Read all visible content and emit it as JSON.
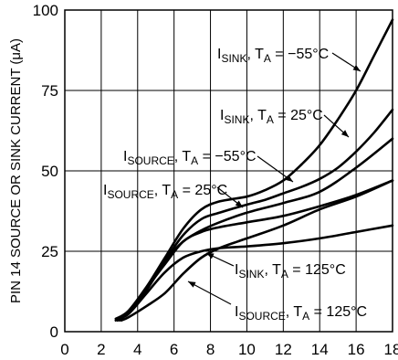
{
  "chart_data": {
    "type": "line",
    "title": "",
    "xlabel": "",
    "ylabel": "PIN 14 SOURCE OR SINK CURRENT (μA)",
    "xlim": [
      0,
      18
    ],
    "ylim": [
      0,
      100
    ],
    "x_ticks": [
      0,
      2,
      4,
      6,
      8,
      10,
      12,
      14,
      16,
      18
    ],
    "y_ticks": [
      0,
      25,
      50,
      75,
      100
    ],
    "grid": true,
    "series": [
      {
        "name": "ISINK, TA = −55°C",
        "x": [
          2.8,
          3.5,
          4.5,
          5.5,
          6.5,
          7.5,
          8.5,
          10,
          11,
          12,
          13,
          14,
          15,
          16,
          17,
          18
        ],
        "y": [
          3.5,
          6,
          14,
          23,
          32,
          38,
          40.5,
          42,
          44,
          47,
          52,
          58,
          66,
          75,
          86,
          97
        ]
      },
      {
        "name": "ISINK, TA = 25°C",
        "x": [
          3,
          3.5,
          4.5,
          5.5,
          6.5,
          7.5,
          8.5,
          10,
          11,
          12,
          13,
          14,
          15,
          16,
          17,
          18
        ],
        "y": [
          3.5,
          6,
          13,
          22,
          30,
          35,
          37,
          39.5,
          41,
          43,
          45,
          47.5,
          51,
          56,
          62,
          69
        ]
      },
      {
        "name": "ISOURCE, TA = −55°C",
        "x": [
          2.8,
          3.5,
          4.5,
          5.5,
          6.5,
          7.5,
          8.5,
          10,
          12,
          14,
          16,
          18
        ],
        "y": [
          4,
          6.5,
          14,
          22,
          28,
          31.5,
          34,
          37,
          40,
          43.5,
          51,
          60
        ]
      },
      {
        "name": "ISOURCE, TA = 25°C",
        "x": [
          2.9,
          3.5,
          4.5,
          5.5,
          6.5,
          7.5,
          8.5,
          10,
          12,
          14,
          16,
          18
        ],
        "y": [
          3.5,
          6,
          13.5,
          21,
          28,
          31,
          32.5,
          34,
          36,
          39,
          42.5,
          47
        ]
      },
      {
        "name": "ISINK, TA = 125°C",
        "x": [
          2.9,
          3.5,
          4.5,
          5.5,
          6.5,
          7.5,
          8.5,
          10,
          12,
          14,
          16,
          18
        ],
        "y": [
          4,
          5.5,
          12,
          18.5,
          23,
          25,
          26,
          26.5,
          27.5,
          29,
          31,
          33
        ]
      },
      {
        "name": "ISOURCE, TA = 125°C",
        "x": [
          3.1,
          3.5,
          4.5,
          5.5,
          6.5,
          7.5,
          8.5,
          10,
          12,
          14,
          16,
          18
        ],
        "y": [
          3.5,
          4.5,
          8,
          12,
          18,
          23,
          26,
          29,
          33,
          38,
          42,
          47
        ]
      }
    ],
    "annotations": [
      {
        "main": "I",
        "sub": "SINK",
        "rest": ", T",
        "sub2": "A",
        "tail": " = −55°C"
      },
      {
        "main": "I",
        "sub": "SINK",
        "rest": ", T",
        "sub2": "A",
        "tail": " = 25°C"
      },
      {
        "main": "I",
        "sub": "SOURCE",
        "rest": ", T",
        "sub2": "A",
        "tail": " = −55°C"
      },
      {
        "main": "I",
        "sub": "SOURCE",
        "rest": ", T",
        "sub2": "A",
        "tail": " = 25°C"
      },
      {
        "main": "I",
        "sub": "SINK",
        "rest": ", T",
        "sub2": "A",
        "tail": " = 125°C"
      },
      {
        "main": "I",
        "sub": "SOURCE",
        "rest": ", T",
        "sub2": "A",
        "tail": " = 125°C"
      }
    ]
  }
}
